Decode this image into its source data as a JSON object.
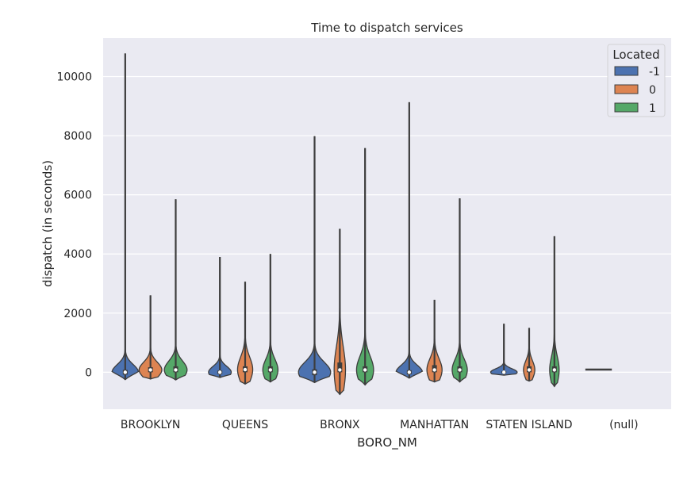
{
  "chart_data": {
    "type": "violin",
    "title": "Time to dispatch services",
    "xlabel": "BORO_NM",
    "ylabel": "dispatch (in seconds)",
    "ylim": [
      -1250,
      11300
    ],
    "yticks": [
      0,
      2000,
      4000,
      6000,
      8000,
      10000
    ],
    "grid": true,
    "categories": [
      "BROOKLYN",
      "QUEENS",
      "BRONX",
      "MANHATTAN",
      "STATEN ISLAND",
      "(null)"
    ],
    "legend": {
      "title": "Located",
      "position": "top-right",
      "entries": [
        "-1",
        "0",
        "1"
      ]
    },
    "colors": {
      "-1": "#4c72b0",
      "0": "#dd8452",
      "1": "#55a868"
    },
    "series": [
      {
        "name": "-1",
        "violins": [
          {
            "min": -250,
            "max": 10780,
            "q1": -80,
            "median": 0,
            "q3": 80,
            "half_width": 0.14,
            "spread": 260
          },
          {
            "min": -180,
            "max": 3900,
            "q1": -60,
            "median": 0,
            "q3": 60,
            "half_width": 0.12,
            "spread": 200
          },
          {
            "min": -350,
            "max": 7980,
            "q1": -100,
            "median": 0,
            "q3": 100,
            "half_width": 0.17,
            "spread": 340
          },
          {
            "min": -200,
            "max": 9130,
            "q1": -70,
            "median": 0,
            "q3": 70,
            "half_width": 0.14,
            "spread": 240
          },
          {
            "min": -100,
            "max": 1640,
            "q1": -40,
            "median": 0,
            "q3": 40,
            "half_width": 0.14,
            "spread": 120
          },
          {
            "min": 80,
            "max": 100,
            "q1": 85,
            "median": 90,
            "q3": 95,
            "half_width": 0.14,
            "spread": 5
          }
        ]
      },
      {
        "name": "0",
        "violins": [
          {
            "min": -230,
            "max": 2600,
            "q1": 0,
            "median": 80,
            "q3": 170,
            "half_width": 0.12,
            "spread": 260
          },
          {
            "min": -400,
            "max": 3060,
            "q1": 0,
            "median": 90,
            "q3": 200,
            "half_width": 0.08,
            "spread": 420
          },
          {
            "min": -750,
            "max": 4850,
            "q1": 0,
            "median": 80,
            "q3": 330,
            "half_width": 0.06,
            "spread": 780
          },
          {
            "min": -330,
            "max": 2450,
            "q1": 0,
            "median": 80,
            "q3": 240,
            "half_width": 0.08,
            "spread": 380
          },
          {
            "min": -300,
            "max": 1500,
            "q1": 0,
            "median": 80,
            "q3": 200,
            "half_width": 0.06,
            "spread": 300
          },
          null
        ]
      },
      {
        "name": "1",
        "violins": [
          {
            "min": -260,
            "max": 5850,
            "q1": 0,
            "median": 80,
            "q3": 200,
            "half_width": 0.12,
            "spread": 300
          },
          {
            "min": -330,
            "max": 4000,
            "q1": 0,
            "median": 80,
            "q3": 200,
            "half_width": 0.08,
            "spread": 360
          },
          {
            "min": -430,
            "max": 7580,
            "q1": 0,
            "median": 80,
            "q3": 200,
            "half_width": 0.09,
            "spread": 460
          },
          {
            "min": -330,
            "max": 5880,
            "q1": 0,
            "median": 80,
            "q3": 200,
            "half_width": 0.08,
            "spread": 360
          },
          {
            "min": -480,
            "max": 4600,
            "q1": 0,
            "median": 80,
            "q3": 200,
            "half_width": 0.05,
            "spread": 460
          },
          null
        ]
      }
    ]
  }
}
